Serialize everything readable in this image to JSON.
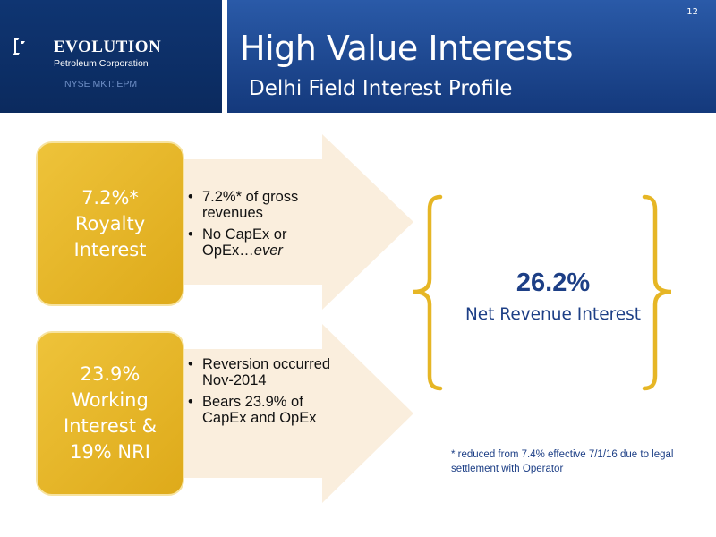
{
  "header": {
    "title": "High Value Interests",
    "subtitle": "Delhi Field Interest Profile",
    "slide_number": "12"
  },
  "logo": {
    "name": "EVOLUTION",
    "tagline": "Petroleum Corporation",
    "exchange": "NYSE MKT: EPM"
  },
  "interests": [
    {
      "label": "7.2%* Royalty Interest",
      "label_lines": [
        "7.2%*",
        "Royalty",
        "Interest"
      ],
      "bullets": [
        "7.2%* of gross revenues",
        "No CapEx or OpEx…"
      ],
      "bullet_emphasis": "ever"
    },
    {
      "label": "23.9% Working Interest & 19% NRI",
      "label_lines": [
        "23.9%",
        "Working",
        "Interest &",
        "19% NRI"
      ],
      "bullets": [
        "Reversion occurred Nov-2014",
        "Bears 23.9% of CapEx and OpEx"
      ]
    }
  ],
  "summary": {
    "value": "26.2%",
    "label": "Net Revenue Interest"
  },
  "footnote": "* reduced from 7.4% effective 7/1/16 due to legal settlement with Operator",
  "colors": {
    "header_blue": "#1f4a96",
    "logo_panel": "#0f3572",
    "gold": "#e6b625",
    "arrow_fill": "#faeedd",
    "text_blue": "#1d3f86"
  }
}
